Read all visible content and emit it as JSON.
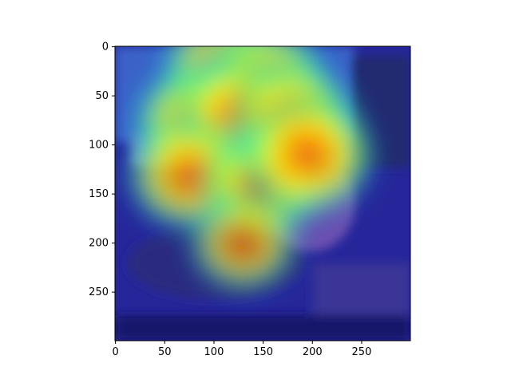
{
  "chart_data": {
    "type": "heatmap",
    "title": "",
    "xlabel": "",
    "ylabel": "",
    "xlim": [
      0,
      299
    ],
    "ylim": [
      299,
      0
    ],
    "x_ticks": [
      0,
      50,
      100,
      150,
      200,
      250
    ],
    "y_ticks": [
      0,
      50,
      100,
      150,
      200,
      250
    ],
    "colormap": "jet",
    "overlay_alpha": 0.5,
    "hotspots": [
      {
        "x": 110,
        "y": 25,
        "intensity": 0.75
      },
      {
        "x": 150,
        "y": 40,
        "intensity": 0.85
      },
      {
        "x": 90,
        "y": 80,
        "intensity": 0.95
      },
      {
        "x": 130,
        "y": 70,
        "intensity": 0.9
      },
      {
        "x": 180,
        "y": 75,
        "intensity": 0.8
      },
      {
        "x": 75,
        "y": 130,
        "intensity": 0.75
      },
      {
        "x": 150,
        "y": 140,
        "intensity": 0.7
      },
      {
        "x": 195,
        "y": 110,
        "intensity": 0.85
      },
      {
        "x": 130,
        "y": 200,
        "intensity": 0.55
      }
    ]
  }
}
